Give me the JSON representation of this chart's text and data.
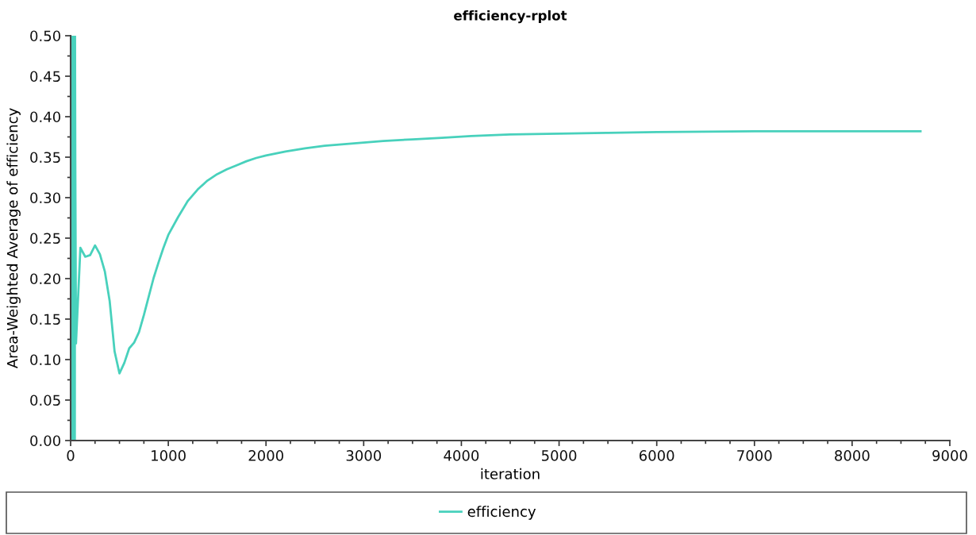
{
  "chart_data": {
    "type": "line",
    "title": "efficiency-rplot",
    "xlabel": "iteration",
    "ylabel": "Area-Weighted Average of efficiency",
    "x": [
      1,
      3,
      5,
      7,
      9,
      11,
      13,
      15,
      17,
      19,
      21,
      23,
      25,
      27,
      29,
      31,
      33,
      35,
      37,
      39,
      41,
      43,
      45,
      48,
      55,
      100,
      150,
      200,
      250,
      300,
      350,
      400,
      450,
      500,
      550,
      600,
      650,
      700,
      750,
      800,
      850,
      900,
      950,
      1000,
      1100,
      1200,
      1300,
      1400,
      1500,
      1600,
      1700,
      1800,
      1900,
      2000,
      2200,
      2400,
      2600,
      2800,
      3000,
      3200,
      3500,
      3800,
      4100,
      4500,
      5000,
      5500,
      6000,
      7000,
      8000,
      8700
    ],
    "series": [
      {
        "name": "efficiency",
        "color": "#48d1bc",
        "values": [
          0.5,
          0.0,
          0.5,
          0.0,
          0.5,
          0.0,
          0.5,
          0.0,
          0.5,
          0.0,
          0.5,
          0.0,
          0.5,
          0.0,
          0.5,
          0.0,
          0.5,
          0.0,
          0.5,
          0.0,
          0.5,
          0.0,
          0.5,
          0.34,
          0.12,
          0.238,
          0.227,
          0.229,
          0.241,
          0.23,
          0.209,
          0.172,
          0.11,
          0.083,
          0.096,
          0.114,
          0.121,
          0.134,
          0.155,
          0.178,
          0.201,
          0.22,
          0.238,
          0.254,
          0.276,
          0.296,
          0.31,
          0.321,
          0.329,
          0.335,
          0.34,
          0.345,
          0.349,
          0.352,
          0.357,
          0.361,
          0.364,
          0.366,
          0.368,
          0.37,
          0.372,
          0.374,
          0.376,
          0.378,
          0.379,
          0.38,
          0.381,
          0.382,
          0.382,
          0.382
        ]
      }
    ],
    "xlim": [
      0,
      9000
    ],
    "xticks": [
      0,
      {
        "value": 250,
        "label": null
      },
      {
        "value": 500,
        "label": null
      },
      {
        "value": 750,
        "label": null
      },
      1000,
      {
        "value": 1250,
        "label": null
      },
      {
        "value": 1500,
        "label": null
      },
      {
        "value": 1750,
        "label": null
      },
      2000,
      {
        "value": 2250,
        "label": null
      },
      {
        "value": 2500,
        "label": null
      },
      {
        "value": 2750,
        "label": null
      },
      3000,
      {
        "value": 3250,
        "label": null
      },
      {
        "value": 3500,
        "label": null
      },
      {
        "value": 3750,
        "label": null
      },
      4000,
      {
        "value": 4250,
        "label": null
      },
      {
        "value": 4500,
        "label": null
      },
      {
        "value": 4750,
        "label": null
      },
      5000,
      {
        "value": 5250,
        "label": null
      },
      {
        "value": 5500,
        "label": null
      },
      {
        "value": 5750,
        "label": null
      },
      6000,
      {
        "value": 6250,
        "label": null
      },
      {
        "value": 6500,
        "label": null
      },
      {
        "value": 6750,
        "label": null
      },
      7000,
      {
        "value": 7250,
        "label": null
      },
      {
        "value": 7500,
        "label": null
      },
      {
        "value": 7750,
        "label": null
      },
      8000,
      {
        "value": 8250,
        "label": null
      },
      {
        "value": 8500,
        "label": null
      },
      {
        "value": 8750,
        "label": null
      },
      9000
    ],
    "ylim": [
      0,
      0.5
    ],
    "yticks": [
      {
        "value": 0,
        "label": "0.00"
      },
      {
        "value": 0.025,
        "label": null
      },
      {
        "value": 0.05,
        "label": "0.05"
      },
      {
        "value": 0.075,
        "label": null
      },
      {
        "value": 0.1,
        "label": "0.10"
      },
      {
        "value": 0.125,
        "label": null
      },
      {
        "value": 0.15,
        "label": "0.15"
      },
      {
        "value": 0.175,
        "label": null
      },
      {
        "value": 0.2,
        "label": "0.20"
      },
      {
        "value": 0.225,
        "label": null
      },
      {
        "value": 0.25,
        "label": "0.25"
      },
      {
        "value": 0.275,
        "label": null
      },
      {
        "value": 0.3,
        "label": "0.30"
      },
      {
        "value": 0.325,
        "label": null
      },
      {
        "value": 0.35,
        "label": "0.35"
      },
      {
        "value": 0.375,
        "label": null
      },
      {
        "value": 0.4,
        "label": "0.40"
      },
      {
        "value": 0.425,
        "label": null
      },
      {
        "value": 0.45,
        "label": "0.45"
      },
      {
        "value": 0.475,
        "label": null
      },
      {
        "value": 0.5,
        "label": "0.50"
      }
    ],
    "line_style": "solid",
    "legend": "bottom"
  }
}
